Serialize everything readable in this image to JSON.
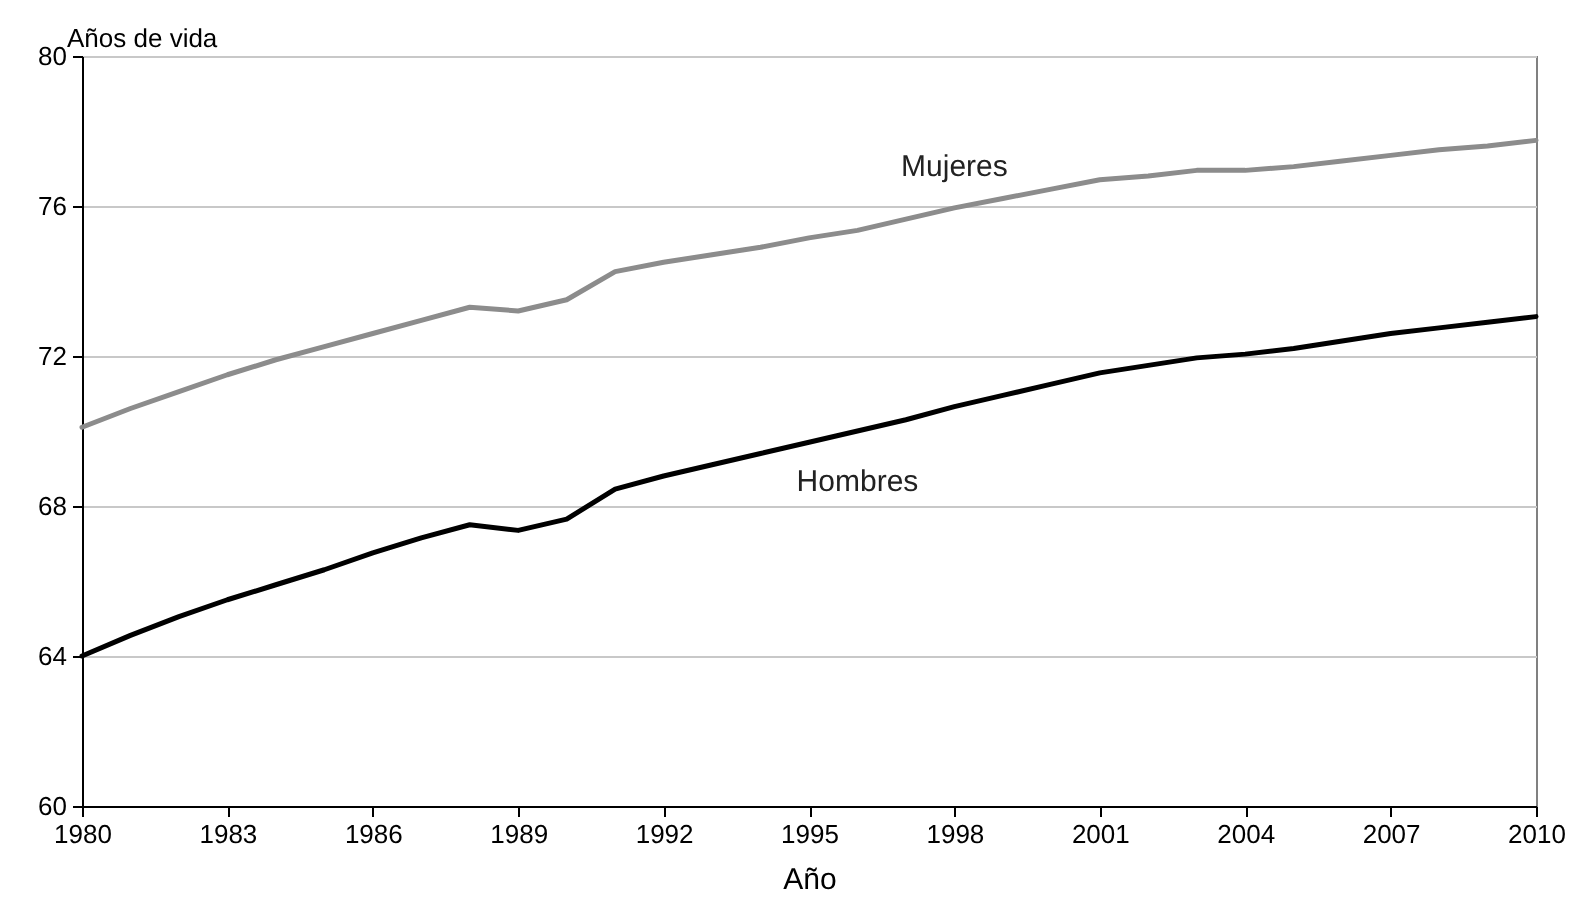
{
  "chart_data": {
    "type": "line",
    "xlabel": "Año",
    "ylabel": "Años de vida",
    "x": [
      1980,
      1981,
      1982,
      1983,
      1984,
      1985,
      1986,
      1987,
      1988,
      1989,
      1990,
      1991,
      1992,
      1993,
      1994,
      1995,
      1996,
      1997,
      1998,
      1999,
      2000,
      2001,
      2002,
      2003,
      2004,
      2005,
      2006,
      2007,
      2008,
      2009,
      2010
    ],
    "series": [
      {
        "name": "Mujeres",
        "color": "#8c8c8c",
        "values": [
          70.1,
          70.6,
          71.05,
          71.5,
          71.9,
          72.25,
          72.6,
          72.95,
          73.3,
          73.2,
          73.5,
          74.25,
          74.5,
          74.7,
          74.9,
          75.15,
          75.35,
          75.65,
          75.95,
          76.2,
          76.45,
          76.7,
          76.8,
          76.95,
          76.95,
          77.05,
          77.2,
          77.35,
          77.5,
          77.6,
          77.75
        ]
      },
      {
        "name": "Hombres",
        "color": "#000000",
        "values": [
          64.0,
          64.55,
          65.05,
          65.5,
          65.9,
          66.3,
          66.75,
          67.15,
          67.5,
          67.35,
          67.65,
          68.45,
          68.8,
          69.1,
          69.4,
          69.7,
          70.0,
          70.3,
          70.65,
          70.95,
          71.25,
          71.55,
          71.75,
          71.95,
          72.05,
          72.2,
          72.4,
          72.6,
          72.75,
          72.9,
          73.05
        ]
      }
    ],
    "xlim": [
      1980,
      2010
    ],
    "xticks": [
      1980,
      1983,
      1986,
      1989,
      1992,
      1995,
      1998,
      2001,
      2004,
      2007,
      2010
    ],
    "ylim": [
      60,
      80
    ],
    "yticks": [
      60,
      64,
      68,
      72,
      76,
      80
    ],
    "grid": "y",
    "legend": false,
    "line_style": "solid",
    "marker": "none"
  }
}
